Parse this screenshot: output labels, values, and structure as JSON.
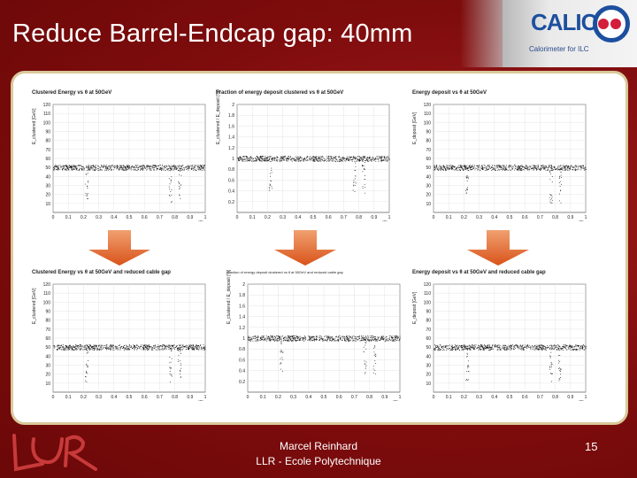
{
  "slide": {
    "title": "Reduce Barrel-Endcap gap: 40mm",
    "page_number": "15",
    "footer_line1": "Marcel Reinhard",
    "footer_line2": "LLR - Ecole Polytechnique"
  },
  "logo": {
    "name": "CALICE",
    "tagline": "Calorimeter for ILC",
    "brand_color": "#1d4f9f",
    "accent_color": "#d21e3b"
  },
  "plots": [
    {
      "title": "Clustered Energy vs θ at 50GeV",
      "ylabel": "E_clustered [GeV]",
      "ymax": 120,
      "yticks": [
        10,
        20,
        30,
        40,
        50,
        60,
        70,
        80,
        90,
        100,
        110,
        120
      ],
      "baseline": 50
    },
    {
      "title": "Fraction of energy deposit clustered vs θ at 50GeV",
      "ylabel": "E_clustered / E_deposit [%]",
      "ymax": 2,
      "yticks": [
        0.2,
        0.4,
        0.6,
        0.8,
        1,
        1.2,
        1.4,
        1.6,
        1.8,
        2
      ],
      "baseline": 1.0
    },
    {
      "title": "Energy deposit vs θ at 50GeV",
      "ylabel": "E_deposit [GeV]",
      "ymax": 120,
      "yticks": [
        10,
        20,
        30,
        40,
        50,
        60,
        70,
        80,
        90,
        100,
        110,
        120
      ],
      "baseline": 50
    },
    {
      "title": "Clustered Energy vs θ at 50GeV and reduced cable gap",
      "ylabel": "E_clustered [GeV]",
      "ymax": 120,
      "yticks": [
        10,
        20,
        30,
        40,
        50,
        60,
        70,
        80,
        90,
        100,
        110,
        120
      ],
      "baseline": 50
    },
    {
      "title": "Fraction of energy deposit clustered vs θ at 50GeV and reduced cable gap",
      "ylabel": "E_clustered / E_deposit [%]",
      "ymax": 2,
      "yticks": [
        0.2,
        0.4,
        0.6,
        0.8,
        1,
        1.2,
        1.4,
        1.6,
        1.8,
        2
      ],
      "baseline": 1.0
    },
    {
      "title": "Energy deposit vs θ at 50GeV and reduced cable gap",
      "ylabel": "E_deposit [GeV]",
      "ymax": 120,
      "yticks": [
        10,
        20,
        30,
        40,
        50,
        60,
        70,
        80,
        90,
        100,
        110,
        120
      ],
      "baseline": 50
    }
  ],
  "xaxis": {
    "label": "cos(θ)",
    "ticks": [
      "0",
      "0.1",
      "0.2",
      "0.3",
      "0.4",
      "0.5",
      "0.6",
      "0.7",
      "0.8",
      "0.9",
      "1"
    ]
  }
}
